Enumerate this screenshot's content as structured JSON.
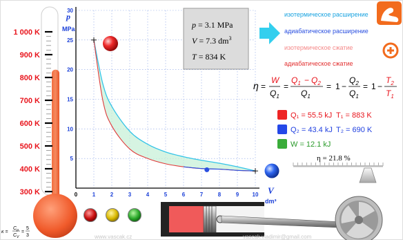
{
  "thermometer": {
    "labels": [
      "1 000 K",
      "900 K",
      "800 K",
      "700 K",
      "600 K",
      "500 K",
      "400 K",
      "300 K"
    ],
    "level_kelvin": 834
  },
  "graph": {
    "p_symbol": "p",
    "p_unit": "MPa",
    "v_symbol": "V",
    "v_unit": "dm³",
    "y_ticks": [
      "30",
      "25",
      "20",
      "15",
      "10",
      "5"
    ],
    "x_ticks": [
      "0",
      "1",
      "2",
      "3",
      "4",
      "5",
      "6",
      "7",
      "8",
      "9",
      "10"
    ]
  },
  "readout": {
    "p_label": "p",
    "p_value": "= 3.1 MPa",
    "v_label": "V",
    "v_value": "= 7.3 dm",
    "v_exp": "3",
    "t_label": "T",
    "t_value": "= 834 K"
  },
  "processes": [
    {
      "label": "изотермическое расширение",
      "color": "#19a3e0"
    },
    {
      "label": "адиабатическое расширение",
      "color": "#2a4fe0"
    },
    {
      "label": "изотермическое сжатие",
      "color": "#f58a8a"
    },
    {
      "label": "адиабатическое сжатие",
      "color": "#e23030"
    }
  ],
  "efficiency": {
    "eta": "η",
    "eq": "=",
    "minus": "−",
    "one": "1",
    "W": "W",
    "Q1": "Q",
    "Q1_sub": "1",
    "Q2": "Q",
    "Q2_sub": "2",
    "T1": "T",
    "T1_sub": "1",
    "T2": "T",
    "T2_sub": "2",
    "result": "η = 21.8 %"
  },
  "energy": {
    "q1": "Q₁ = 55.5 kJ",
    "t1": "T₁ = 883 K",
    "q2": "Q₂ = 43.4 kJ",
    "t2": "T₂ = 690 K",
    "w": "W = 12.1 kJ"
  },
  "footer": {
    "website": "www.vascak.cz",
    "email": "vascak.vladimir@gmail.com",
    "kappa_symbol": "κ =",
    "cp": "C",
    "cp_sub": "p",
    "cv": "C",
    "cv_sub": "V",
    "kappa_eq": "=",
    "kappa_num": "5",
    "kappa_den": "3"
  },
  "colors": {
    "accent_orange": "#f26b1d",
    "mercury": "#f0643a",
    "arrow_cyan": "#33cfee",
    "red_label": "#e8141c",
    "blue_label": "#2040e0",
    "green_label": "#2a9a2a",
    "grid_blue": "#8aa4e6"
  },
  "chart_data": {
    "type": "line",
    "xlabel": "V dm³",
    "ylabel": "p MPa",
    "xlim": [
      0,
      10
    ],
    "ylim": [
      0,
      30
    ],
    "x_ticks": [
      1,
      2,
      3,
      4,
      5,
      6,
      7,
      8,
      9,
      10
    ],
    "y_ticks": [
      5,
      10,
      15,
      20,
      25,
      30
    ],
    "grid": true,
    "series": [
      {
        "x": [
          1,
          1.5,
          2,
          3,
          4,
          5,
          6,
          7,
          8,
          9,
          10
        ],
        "y": [
          25,
          17.6,
          13.8,
          9.6,
          7.4,
          6.1,
          5.3,
          4.7,
          4.2,
          3.6,
          2.9
        ]
      },
      {
        "x": [
          1,
          1.5,
          2,
          3,
          4,
          5,
          6,
          7,
          8,
          9,
          10
        ],
        "y": [
          25,
          14.8,
          10.5,
          6.6,
          5.0,
          4.1,
          3.6,
          3.3,
          3.2,
          3.0,
          2.9
        ]
      }
    ],
    "current_point": {
      "x": 7.3,
      "y": 3.1
    }
  }
}
